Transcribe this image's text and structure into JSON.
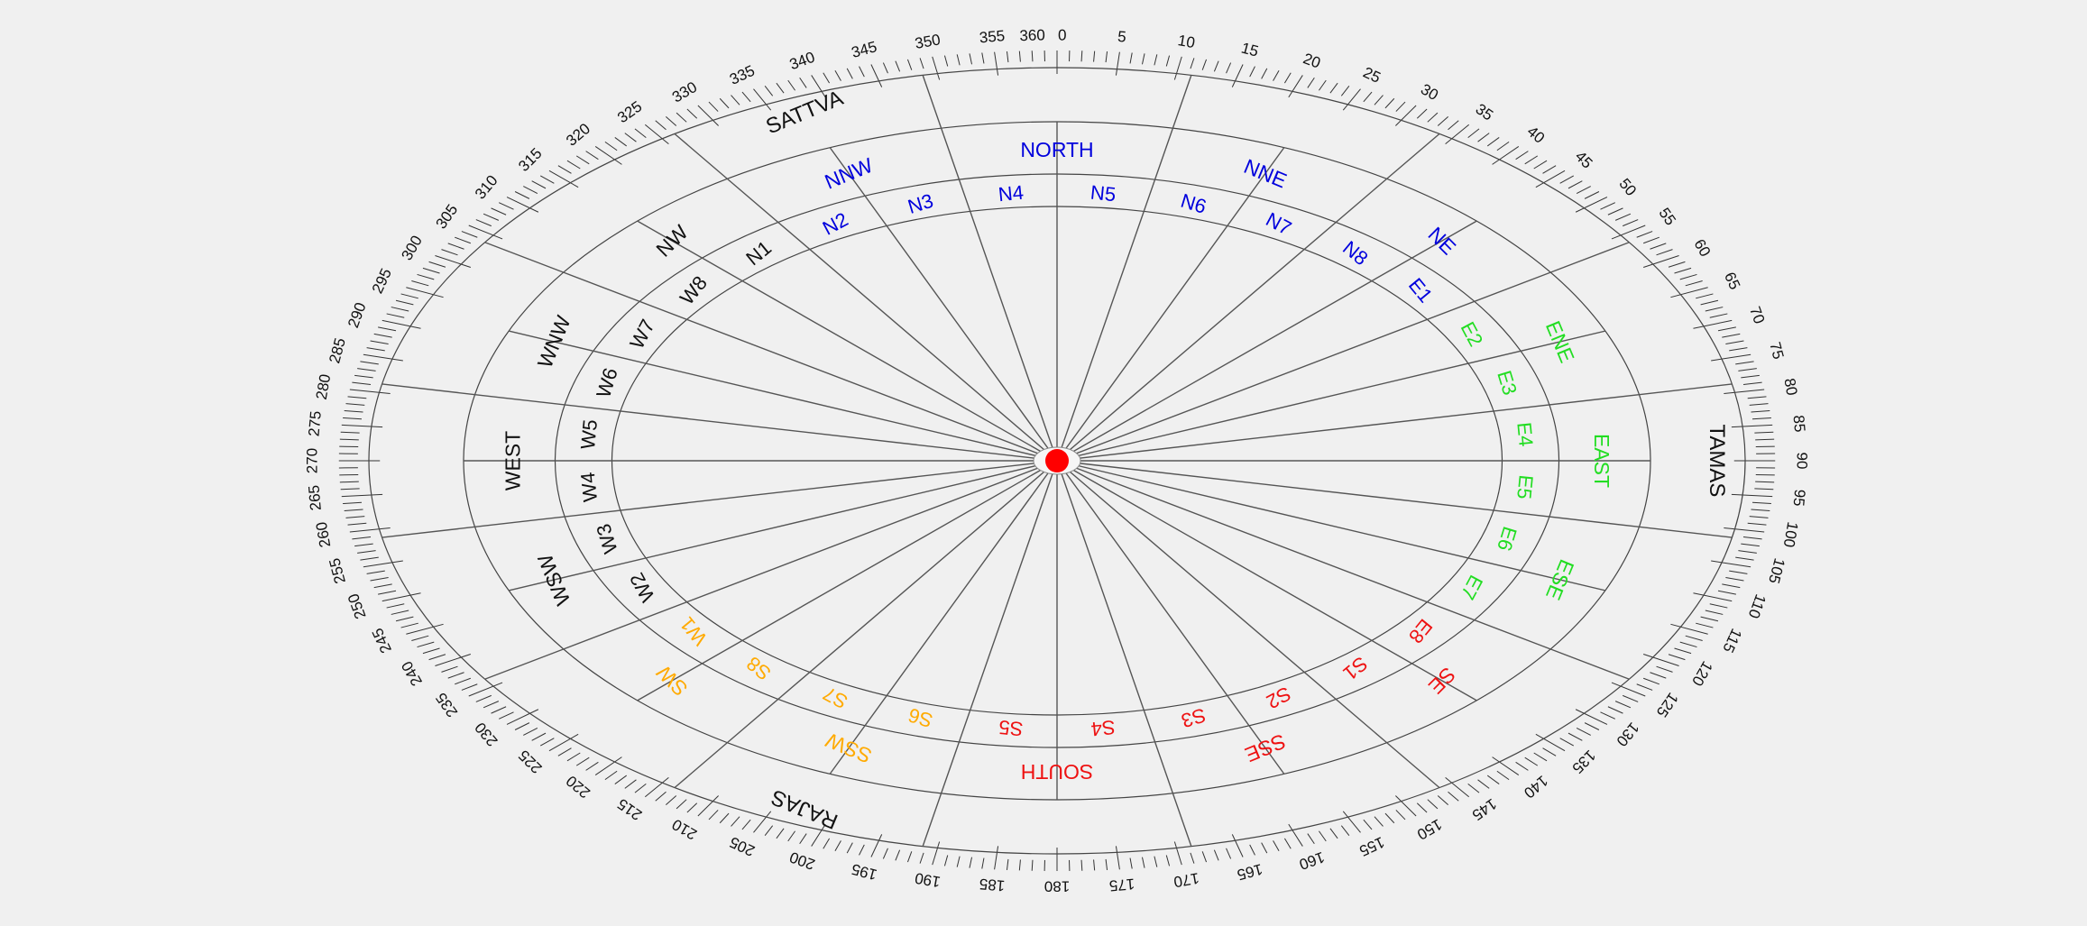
{
  "colors": {
    "background": "#f0f0f0",
    "line": "#555555",
    "center_dot": "#ff0000",
    "black": "#111111",
    "blue": "#0000dd",
    "green": "#22dd22",
    "red": "#ee1111",
    "orange": "#ffaa00"
  },
  "scale": {
    "label_step_degrees": 5,
    "tick_step_degrees": 1,
    "labels": [
      "0",
      "5",
      "10",
      "15",
      "20",
      "25",
      "30",
      "35",
      "40",
      "45",
      "50",
      "55",
      "60",
      "65",
      "70",
      "75",
      "80",
      "85",
      "90",
      "95",
      "100",
      "105",
      "110",
      "115",
      "120",
      "125",
      "130",
      "135",
      "140",
      "145",
      "150",
      "155",
      "160",
      "165",
      "170",
      "175",
      "180",
      "185",
      "190",
      "195",
      "200",
      "205",
      "210",
      "215",
      "220",
      "225",
      "230",
      "235",
      "240",
      "245",
      "250",
      "255",
      "260",
      "265",
      "270",
      "275",
      "280",
      "285",
      "290",
      "295",
      "300",
      "305",
      "310",
      "315",
      "320",
      "325",
      "330",
      "335",
      "340",
      "345",
      "350",
      "355",
      "360"
    ]
  },
  "gunas": [
    {
      "label": "SATTVA",
      "angle": 337.5
    },
    {
      "label": "TAMAS",
      "angle": 90
    },
    {
      "label": "RAJAS",
      "angle": 202.5
    }
  ],
  "directions": [
    {
      "label": "NORTH",
      "angle": 0,
      "color": "blue"
    },
    {
      "label": "NNE",
      "angle": 22.5,
      "color": "blue"
    },
    {
      "label": "NE",
      "angle": 45,
      "color": "blue"
    },
    {
      "label": "ENE",
      "angle": 67.5,
      "color": "green"
    },
    {
      "label": "EAST",
      "angle": 90,
      "color": "green"
    },
    {
      "label": "ESE",
      "angle": 112.5,
      "color": "green"
    },
    {
      "label": "SE",
      "angle": 135,
      "color": "red"
    },
    {
      "label": "SSE",
      "angle": 157.5,
      "color": "red"
    },
    {
      "label": "SOUTH",
      "angle": 180,
      "color": "red"
    },
    {
      "label": "SSW",
      "angle": 202.5,
      "color": "orange"
    },
    {
      "label": "SW",
      "angle": 225,
      "color": "orange"
    },
    {
      "label": "WSW",
      "angle": 247.5,
      "color": "black"
    },
    {
      "label": "WEST",
      "angle": 270,
      "color": "black"
    },
    {
      "label": "WNW",
      "angle": 292.5,
      "color": "black"
    },
    {
      "label": "NW",
      "angle": 315,
      "color": "black"
    },
    {
      "label": "NNW",
      "angle": 337.5,
      "color": "blue"
    }
  ],
  "zones": [
    {
      "label": "N4",
      "color": "blue"
    },
    {
      "label": "N5",
      "color": "blue"
    },
    {
      "label": "N6",
      "color": "blue"
    },
    {
      "label": "N7",
      "color": "blue"
    },
    {
      "label": "N8",
      "color": "blue"
    },
    {
      "label": "E1",
      "color": "blue"
    },
    {
      "label": "E2",
      "color": "green"
    },
    {
      "label": "E3",
      "color": "green"
    },
    {
      "label": "E4",
      "color": "green"
    },
    {
      "label": "E5",
      "color": "green"
    },
    {
      "label": "E6",
      "color": "green"
    },
    {
      "label": "E7",
      "color": "green"
    },
    {
      "label": "E8",
      "color": "red"
    },
    {
      "label": "S1",
      "color": "red"
    },
    {
      "label": "S2",
      "color": "red"
    },
    {
      "label": "S3",
      "color": "red"
    },
    {
      "label": "S4",
      "color": "red"
    },
    {
      "label": "S5",
      "color": "red"
    },
    {
      "label": "S6",
      "color": "orange"
    },
    {
      "label": "S7",
      "color": "orange"
    },
    {
      "label": "S8",
      "color": "orange"
    },
    {
      "label": "W1",
      "color": "orange"
    },
    {
      "label": "W2",
      "color": "black"
    },
    {
      "label": "W3",
      "color": "black"
    },
    {
      "label": "W4",
      "color": "black"
    },
    {
      "label": "W5",
      "color": "black"
    },
    {
      "label": "W6",
      "color": "black"
    },
    {
      "label": "W7",
      "color": "black"
    },
    {
      "label": "W8",
      "color": "black"
    },
    {
      "label": "N1",
      "color": "black"
    },
    {
      "label": "N2",
      "color": "blue"
    },
    {
      "label": "N3",
      "color": "blue"
    }
  ]
}
